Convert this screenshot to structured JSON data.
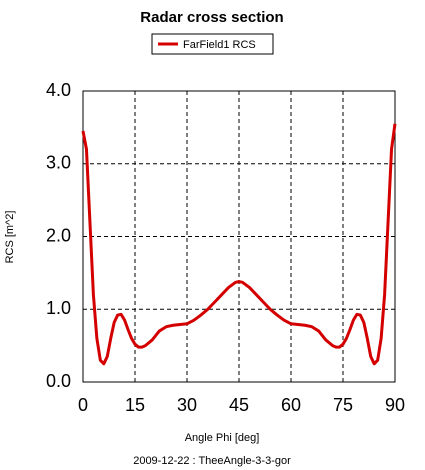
{
  "chart_data": {
    "type": "line",
    "title": "Radar cross section",
    "xlabel": "Angle Phi [deg]",
    "ylabel": "RCS [m^2]",
    "footer": "2009-12-22 : TheeAngle-3-3-gor",
    "legend": "top",
    "grid": true,
    "x": [
      0,
      1,
      2,
      3,
      4,
      5,
      6,
      7,
      8,
      9,
      10,
      11,
      12,
      13,
      14,
      15,
      16,
      17,
      18,
      20,
      22,
      24,
      26,
      28,
      30,
      32,
      34,
      36,
      38,
      40,
      42,
      44,
      45,
      46,
      48,
      50,
      52,
      54,
      56,
      58,
      60,
      62,
      64,
      66,
      68,
      70,
      72,
      73,
      74,
      75,
      76,
      77,
      78,
      79,
      80,
      81,
      82,
      83,
      84,
      85,
      86,
      87,
      88,
      89,
      90
    ],
    "series": [
      {
        "name": "FarField1 RCS",
        "color": "#d40000",
        "values": [
          3.45,
          3.2,
          2.2,
          1.2,
          0.6,
          0.3,
          0.25,
          0.35,
          0.6,
          0.82,
          0.92,
          0.93,
          0.85,
          0.72,
          0.6,
          0.52,
          0.48,
          0.48,
          0.5,
          0.58,
          0.7,
          0.76,
          0.78,
          0.79,
          0.8,
          0.85,
          0.92,
          1.0,
          1.1,
          1.2,
          1.3,
          1.37,
          1.38,
          1.37,
          1.3,
          1.2,
          1.1,
          1.0,
          0.92,
          0.85,
          0.8,
          0.79,
          0.78,
          0.76,
          0.7,
          0.58,
          0.5,
          0.48,
          0.48,
          0.52,
          0.6,
          0.72,
          0.85,
          0.93,
          0.92,
          0.82,
          0.6,
          0.35,
          0.25,
          0.3,
          0.6,
          1.2,
          2.2,
          3.2,
          3.55
        ]
      }
    ],
    "xlim": [
      0,
      90
    ],
    "xticks": [
      0,
      15,
      30,
      45,
      60,
      75,
      90
    ],
    "ylim": [
      0,
      4
    ],
    "yticks": [
      {
        "value": 0,
        "label": "0.0"
      },
      {
        "value": 1,
        "label": "1.0"
      },
      {
        "value": 2,
        "label": "2.0"
      },
      {
        "value": 3,
        "label": "3.0"
      },
      {
        "value": 4,
        "label": "4.0"
      }
    ]
  }
}
